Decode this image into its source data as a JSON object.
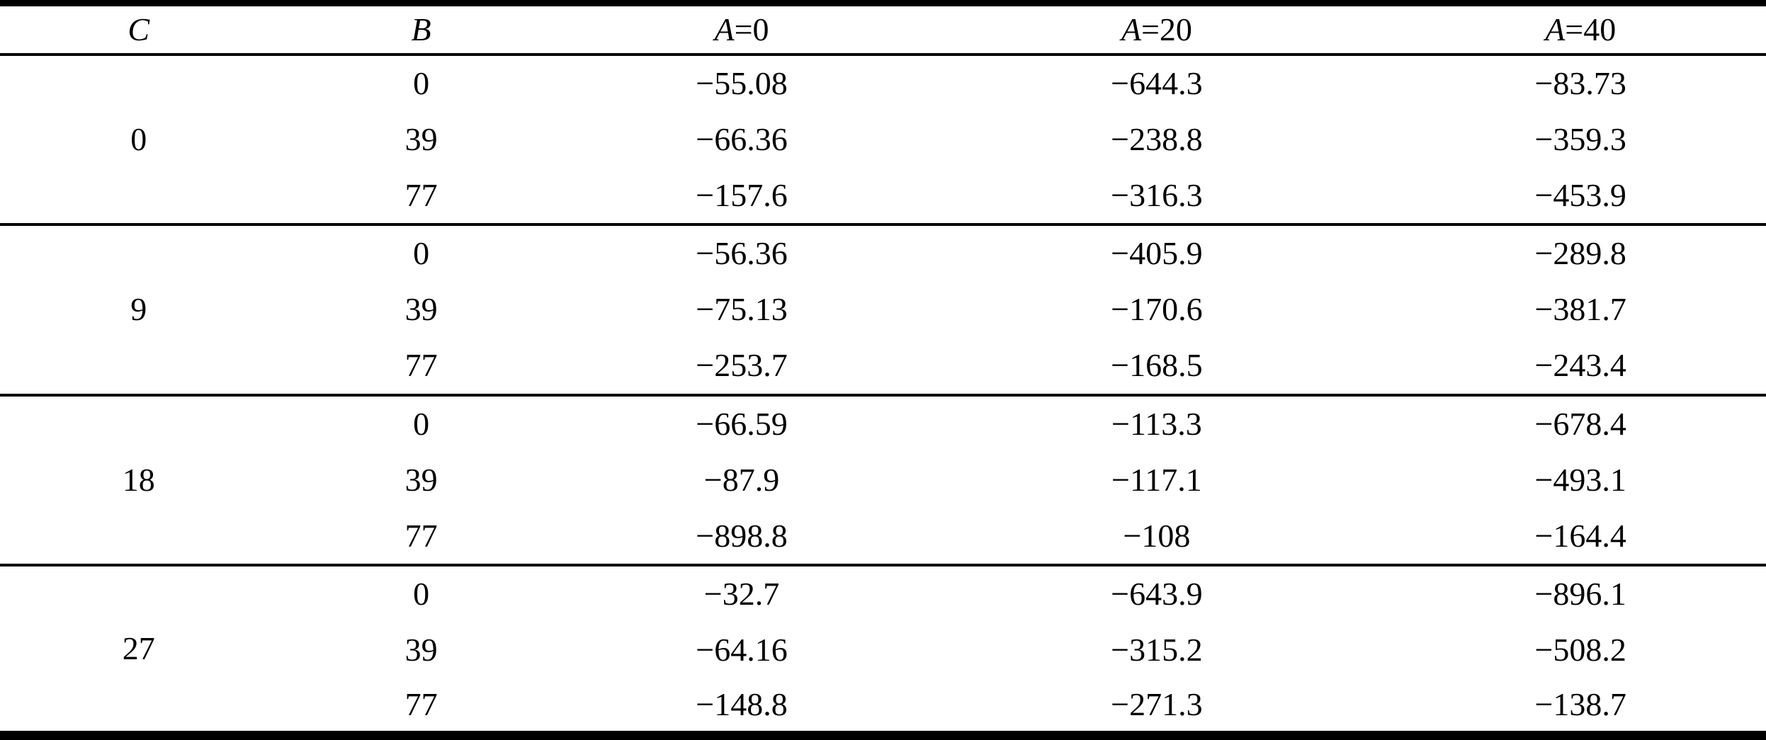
{
  "table": {
    "header": {
      "c": "C",
      "b": "B",
      "a_cols": [
        {
          "var": "A",
          "eq": "=0",
          "label": "A=0"
        },
        {
          "var": "A",
          "eq": "=20",
          "label": "A=20"
        },
        {
          "var": "A",
          "eq": "=40",
          "label": "A=40"
        }
      ]
    },
    "groups": [
      {
        "c": "0",
        "rows": [
          {
            "b": "0",
            "a0": "−55.08",
            "a20": "−644.3",
            "a40": "−83.73"
          },
          {
            "b": "39",
            "a0": "−66.36",
            "a20": "−238.8",
            "a40": "−359.3"
          },
          {
            "b": "77",
            "a0": "−157.6",
            "a20": "−316.3",
            "a40": "−453.9"
          }
        ]
      },
      {
        "c": "9",
        "rows": [
          {
            "b": "0",
            "a0": "−56.36",
            "a20": "−405.9",
            "a40": "−289.8"
          },
          {
            "b": "39",
            "a0": "−75.13",
            "a20": "−170.6",
            "a40": "−381.7"
          },
          {
            "b": "77",
            "a0": "−253.7",
            "a20": "−168.5",
            "a40": "−243.4"
          }
        ]
      },
      {
        "c": "18",
        "rows": [
          {
            "b": "0",
            "a0": "−66.59",
            "a20": "−113.3",
            "a40": "−678.4"
          },
          {
            "b": "39",
            "a0": "−87.9",
            "a20": "−117.1",
            "a40": "−493.1"
          },
          {
            "b": "77",
            "a0": "−898.8",
            "a20": "−108",
            "a40": "−164.4"
          }
        ]
      },
      {
        "c": "27",
        "rows": [
          {
            "b": "0",
            "a0": "−32.7",
            "a20": "−643.9",
            "a40": "−896.1"
          },
          {
            "b": "39",
            "a0": "−64.16",
            "a20": "−315.2",
            "a40": "−508.2"
          },
          {
            "b": "77",
            "a0": "−148.8",
            "a20": "−271.3",
            "a40": "−138.7"
          }
        ]
      }
    ]
  },
  "chart_data": {
    "type": "table",
    "columns": [
      "C",
      "B",
      "A=0",
      "A=20",
      "A=40"
    ],
    "rows": [
      [
        "0",
        "0",
        "−55.08",
        "−644.3",
        "−83.73"
      ],
      [
        "0",
        "39",
        "−66.36",
        "−238.8",
        "−359.3"
      ],
      [
        "0",
        "77",
        "−157.6",
        "−316.3",
        "−453.9"
      ],
      [
        "9",
        "0",
        "−56.36",
        "−405.9",
        "−289.8"
      ],
      [
        "9",
        "39",
        "−75.13",
        "−170.6",
        "−381.7"
      ],
      [
        "9",
        "77",
        "−253.7",
        "−168.5",
        "−243.4"
      ],
      [
        "18",
        "0",
        "−66.59",
        "−113.3",
        "−678.4"
      ],
      [
        "18",
        "39",
        "−87.9",
        "−117.1",
        "−493.1"
      ],
      [
        "18",
        "77",
        "−898.8",
        "−108",
        "−164.4"
      ],
      [
        "27",
        "0",
        "−32.7",
        "−643.9",
        "−896.1"
      ],
      [
        "27",
        "39",
        "−64.16",
        "−315.2",
        "−508.2"
      ],
      [
        "27",
        "77",
        "−148.8",
        "−271.3",
        "−138.7"
      ]
    ]
  }
}
